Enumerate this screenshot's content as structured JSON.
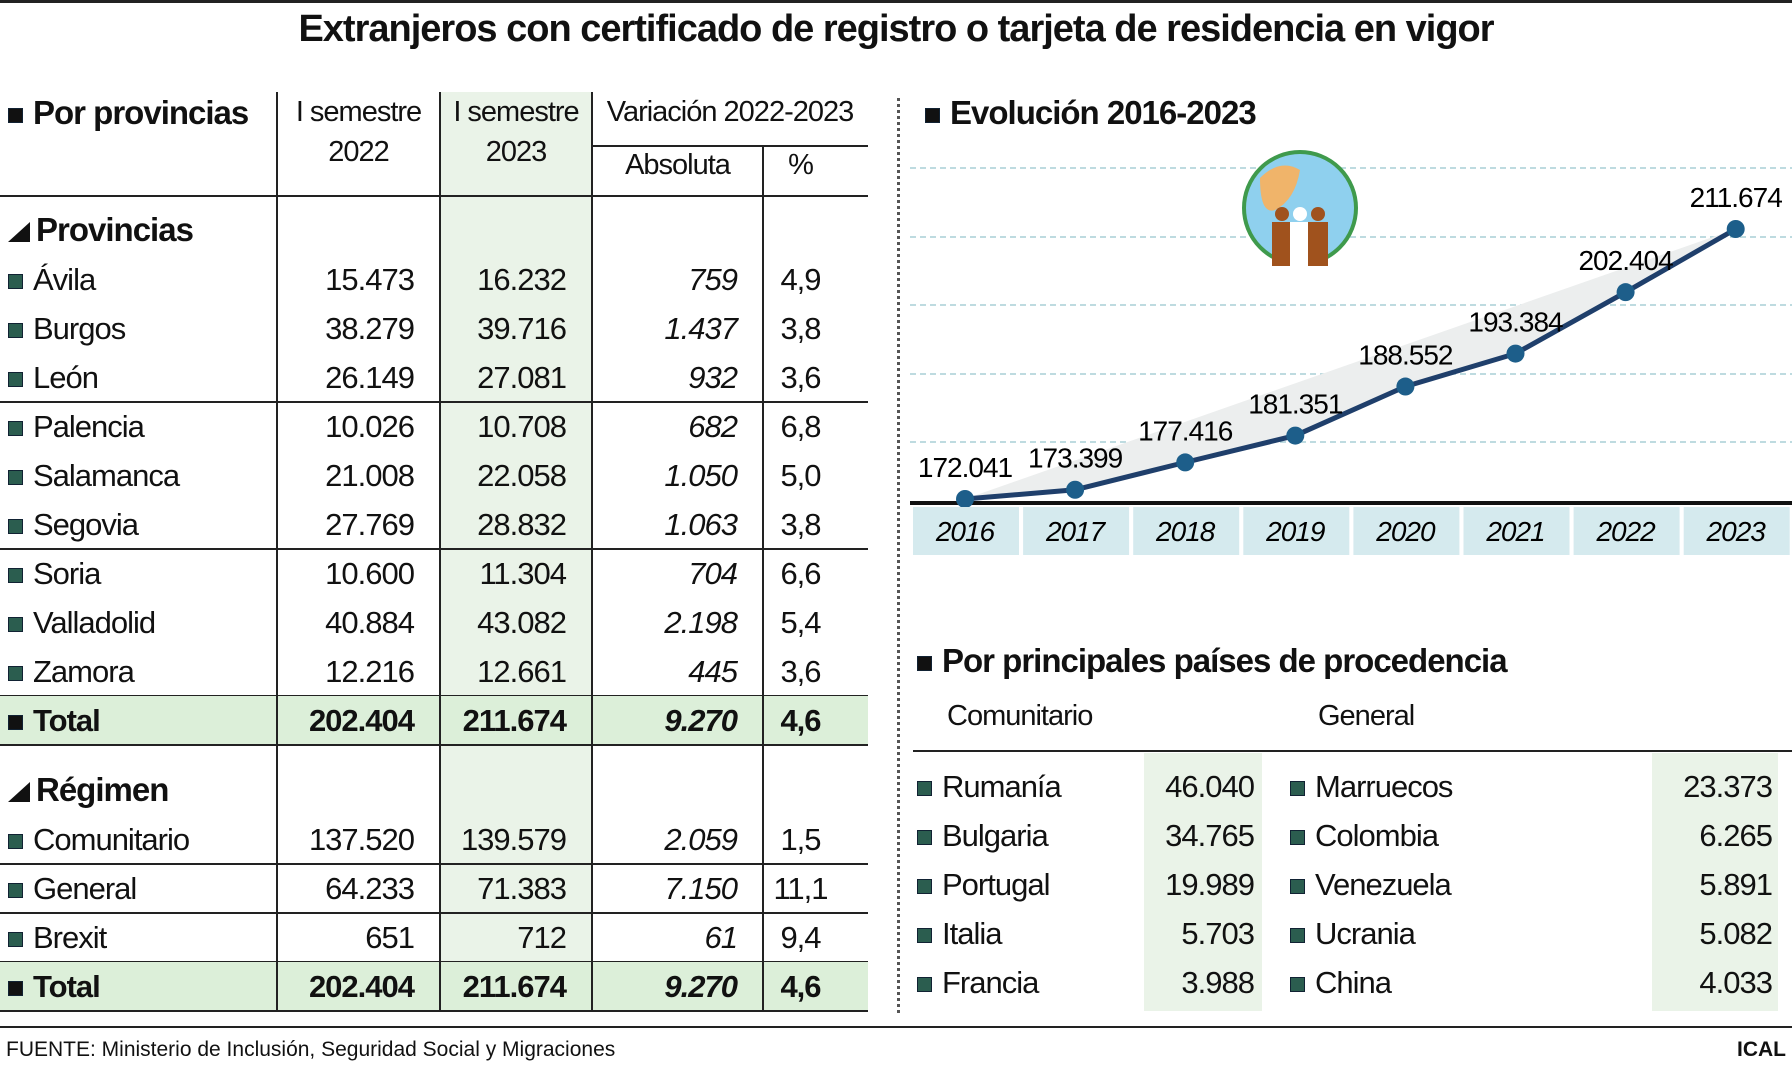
{
  "title": "Extranjeros con certificado de registro o tarjeta de residencia en vigor",
  "left": {
    "section_title": "Por provincias",
    "headers": {
      "col1": [
        "I semestre",
        "2022"
      ],
      "col2": [
        "I semestre",
        "2023"
      ],
      "variation": "Variación 2022-2023",
      "abs": "Absoluta",
      "pct": "%"
    },
    "group1": "Provincias",
    "provinces": [
      [
        "Ávila",
        "15.473",
        "16.232",
        "759",
        "4,9"
      ],
      [
        "Burgos",
        "38.279",
        "39.716",
        "1.437",
        "3,8"
      ],
      [
        "León",
        "26.149",
        "27.081",
        "932",
        "3,6"
      ],
      [
        "Palencia",
        "10.026",
        "10.708",
        "682",
        "6,8"
      ],
      [
        "Salamanca",
        "21.008",
        "22.058",
        "1.050",
        "5,0"
      ],
      [
        "Segovia",
        "27.769",
        "28.832",
        "1.063",
        "3,8"
      ],
      [
        "Soria",
        "10.600",
        "11.304",
        "704",
        "6,6"
      ],
      [
        "Valladolid",
        "40.884",
        "43.082",
        "2.198",
        "5,4"
      ],
      [
        "Zamora",
        "12.216",
        "12.661",
        "445",
        "3,6"
      ]
    ],
    "total1": [
      "Total",
      "202.404",
      "211.674",
      "9.270",
      "4,6"
    ],
    "group2": "Régimen",
    "regimen": [
      [
        "Comunitario",
        "137.520",
        "139.579",
        "2.059",
        "1,5"
      ],
      [
        "General",
        "64.233",
        "71.383",
        "7.150",
        "11,1"
      ],
      [
        "Brexit",
        "651",
        "712",
        "61",
        "9,4"
      ]
    ],
    "total2": [
      "Total",
      "202.404",
      "211.674",
      "9.270",
      "4,6"
    ]
  },
  "evolution": {
    "section_title": "Evolución 2016-2023"
  },
  "chart_data": {
    "type": "line",
    "title": "Evolución 2016-2023",
    "categories": [
      "2016",
      "2017",
      "2018",
      "2019",
      "2020",
      "2021",
      "2022",
      "2023"
    ],
    "values": [
      172041,
      173399,
      177416,
      181351,
      188552,
      193384,
      202404,
      211674
    ],
    "labels": [
      "172.041",
      "173.399",
      "177.416",
      "181.351",
      "188.552",
      "193.384",
      "202.404",
      "211.674"
    ],
    "ylim": [
      170000,
      215000
    ],
    "grid": true,
    "colors": {
      "line": "#1f3f6b",
      "area": "#eceeee"
    }
  },
  "countries": {
    "section_title": "Por principales países de procedencia",
    "comunitario_label": "Comunitario",
    "general_label": "General",
    "comunitario": [
      [
        "Rumanía",
        "46.040"
      ],
      [
        "Bulgaria",
        "34.765"
      ],
      [
        "Portugal",
        "19.989"
      ],
      [
        "Italia",
        "5.703"
      ],
      [
        "Francia",
        "3.988"
      ]
    ],
    "general": [
      [
        "Marruecos",
        "23.373"
      ],
      [
        "Colombia",
        "6.265"
      ],
      [
        "Venezuela",
        "5.891"
      ],
      [
        "Ucrania",
        "5.082"
      ],
      [
        "China",
        "4.033"
      ]
    ]
  },
  "footer": {
    "source": "FUENTE: Ministerio de Inclusión, Seguridad Social y Migraciones",
    "brand": "ICAL"
  }
}
